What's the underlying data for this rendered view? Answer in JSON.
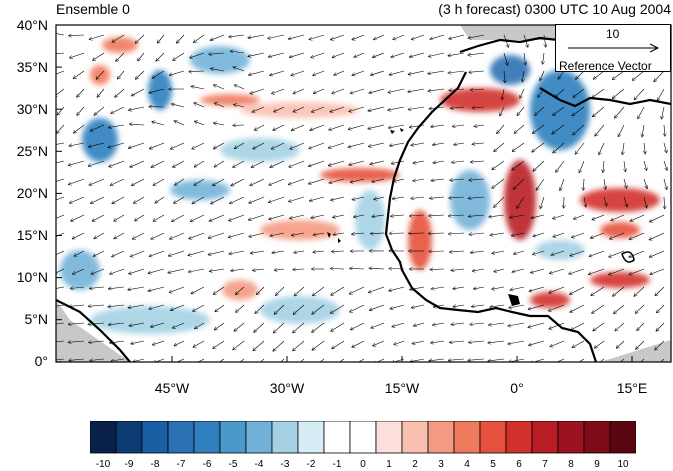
{
  "header": {
    "left_title": "Ensemble 0",
    "right_title": "(3 h forecast) 0300 UTC 10 Aug 2004"
  },
  "map": {
    "lat_labels": [
      "40°N",
      "35°N",
      "30°N",
      "25°N",
      "20°N",
      "15°N",
      "10°N",
      "5°N",
      "0°"
    ],
    "lon_labels": [
      "45°W",
      "30°W",
      "15°W",
      "0°",
      "15°E"
    ],
    "extent": {
      "lon": [
        -60,
        20
      ],
      "lat": [
        0,
        40
      ]
    },
    "reference_vector": {
      "magnitude": "10",
      "label": "Reference Vector"
    }
  },
  "colorbar": {
    "labels": [
      "-10",
      "-9",
      "-8",
      "-7",
      "-6",
      "-5",
      "-4",
      "-3",
      "-2",
      "-1",
      "0",
      "1",
      "2",
      "3",
      "4",
      "5",
      "6",
      "7",
      "8",
      "9",
      "10"
    ],
    "colors": [
      "#08204a",
      "#0b3b72",
      "#1a5ea3",
      "#2b72b5",
      "#2f7fbf",
      "#4a98cc",
      "#73b2d8",
      "#a4d2e4",
      "#d6edf5",
      "#ffffff",
      "#ffffff",
      "#fde0dd",
      "#f9c0b0",
      "#f49a82",
      "#ef7a5d",
      "#e5513c",
      "#d1312b",
      "#b81d25",
      "#9b1320",
      "#7d0c18",
      "#5a0610"
    ]
  }
}
